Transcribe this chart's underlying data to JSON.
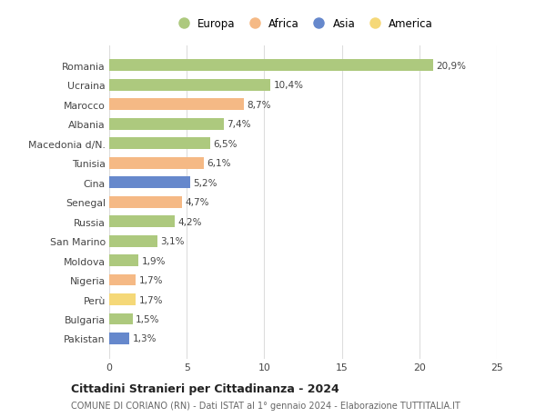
{
  "countries": [
    "Romania",
    "Ucraina",
    "Marocco",
    "Albania",
    "Macedonia d/N.",
    "Tunisia",
    "Cina",
    "Senegal",
    "Russia",
    "San Marino",
    "Moldova",
    "Nigeria",
    "Perù",
    "Bulgaria",
    "Pakistan"
  ],
  "values": [
    20.9,
    10.4,
    8.7,
    7.4,
    6.5,
    6.1,
    5.2,
    4.7,
    4.2,
    3.1,
    1.9,
    1.7,
    1.7,
    1.5,
    1.3
  ],
  "labels": [
    "20,9%",
    "10,4%",
    "8,7%",
    "7,4%",
    "6,5%",
    "6,1%",
    "5,2%",
    "4,7%",
    "4,2%",
    "3,1%",
    "1,9%",
    "1,7%",
    "1,7%",
    "1,5%",
    "1,3%"
  ],
  "continents": [
    "Europa",
    "Europa",
    "Africa",
    "Europa",
    "Europa",
    "Africa",
    "Asia",
    "Africa",
    "Europa",
    "Europa",
    "Europa",
    "Africa",
    "America",
    "Europa",
    "Asia"
  ],
  "continent_colors": {
    "Europa": "#adc97e",
    "Africa": "#f5b985",
    "Asia": "#6688cc",
    "America": "#f5d878"
  },
  "legend_order": [
    "Europa",
    "Africa",
    "Asia",
    "America"
  ],
  "title": "Cittadini Stranieri per Cittadinanza - 2024",
  "subtitle": "COMUNE DI CORIANO (RN) - Dati ISTAT al 1° gennaio 2024 - Elaborazione TUTTITALIA.IT",
  "xlim": [
    0,
    25
  ],
  "xticks": [
    0,
    5,
    10,
    15,
    20,
    25
  ],
  "background_color": "#ffffff",
  "grid_color": "#dddddd",
  "bar_height": 0.6,
  "figsize": [
    6.0,
    4.6
  ],
  "dpi": 100
}
